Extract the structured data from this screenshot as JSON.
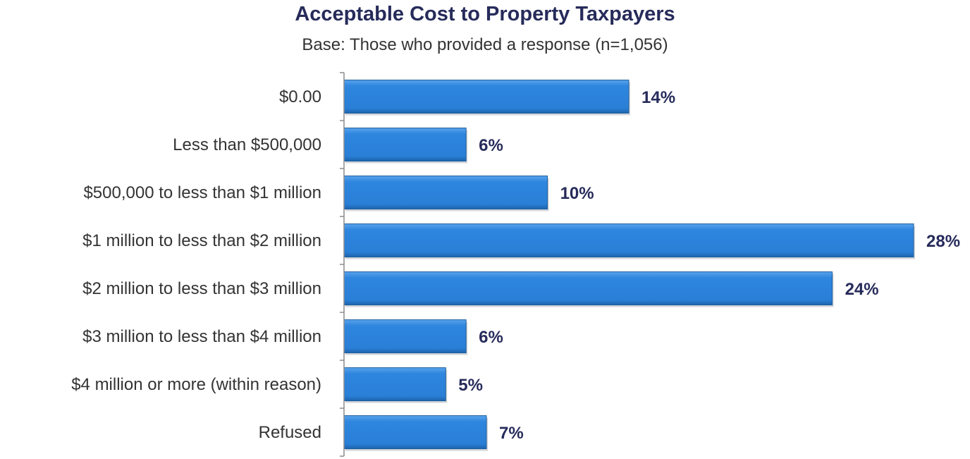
{
  "chart_data": {
    "type": "bar",
    "orientation": "horizontal",
    "title": "Acceptable Cost to Property Taxpayers",
    "subtitle": "Base: Those who provided a response (n=1,056)",
    "categories": [
      "$0.00",
      "Less than $500,000",
      "$500,000 to less than $1 million",
      "$1 million to less than $2 million",
      "$2 million to less than $3 million",
      "$3 million to less than $4 million",
      "$4 million or more (within reason)",
      "Refused"
    ],
    "values": [
      14,
      6,
      10,
      28,
      24,
      6,
      5,
      7
    ],
    "value_labels": [
      "14%",
      "6%",
      "10%",
      "28%",
      "24%",
      "6%",
      "5%",
      "7%"
    ],
    "xlim": [
      0,
      28
    ],
    "grid": false,
    "legend": "none",
    "bar_color": "#2e86de",
    "bar_edge_color": "#1f5f9e",
    "label_color": "#262b5a"
  }
}
